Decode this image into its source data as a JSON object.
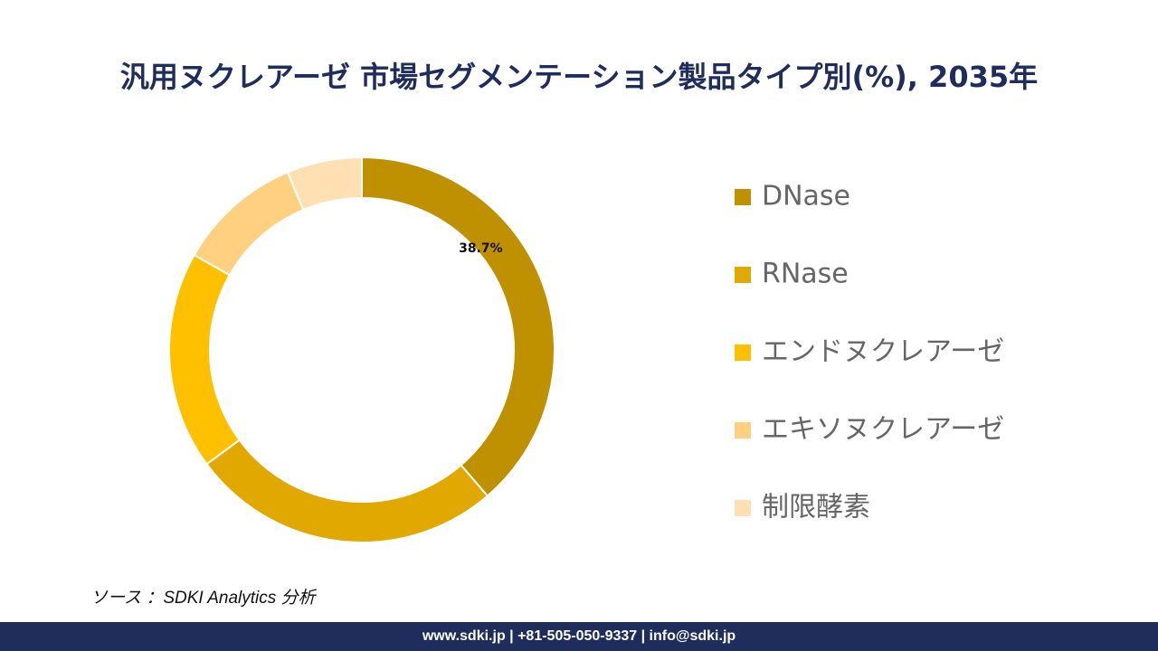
{
  "chart_data": {
    "type": "donut",
    "title": "汎用ヌクレアーゼ 市場セグメンテーション製品タイプ別(%), 2035年",
    "categories": [
      "DNase",
      "RNase",
      "エンドヌクレアーゼ",
      "エキソヌクレアーゼ",
      "制限酵素"
    ],
    "values": [
      38.7,
      26.2,
      18.3,
      10.5,
      6.3
    ],
    "value_labels": [
      "38.7%",
      null,
      null,
      null,
      null
    ],
    "colors": [
      "#bf9000",
      "#e0a800",
      "#ffc000",
      "#ffd080",
      "#ffe0b3"
    ],
    "legend": "right"
  },
  "source": "ソース ：SDKI Analytics 分析",
  "footer": "www.sdki.jp | +81-505-050-9337 | info@sdki.jp"
}
